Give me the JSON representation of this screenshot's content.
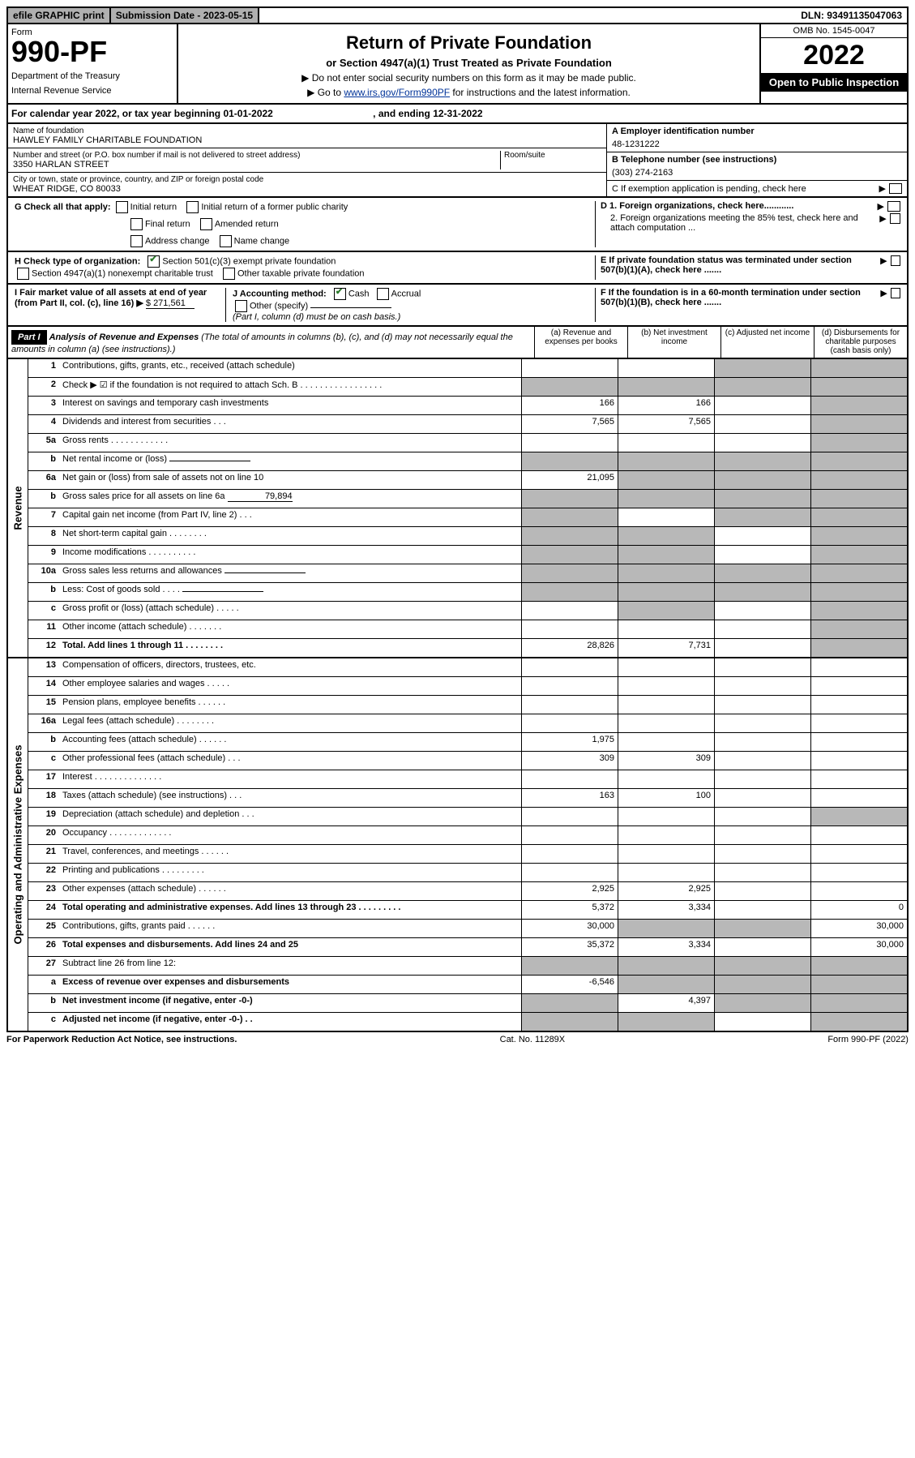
{
  "topbar": {
    "efile": "efile GRAPHIC print",
    "subdate_lbl": "Submission Date - ",
    "subdate_val": "2023-05-15",
    "dln_lbl": "DLN: ",
    "dln_val": "93491135047063"
  },
  "hdr": {
    "form_word": "Form",
    "form_no": "990-PF",
    "dept": "Department of the Treasury",
    "irs": "Internal Revenue Service",
    "title": "Return of Private Foundation",
    "subtitle": "or Section 4947(a)(1) Trust Treated as Private Foundation",
    "instr1": "▶ Do not enter social security numbers on this form as it may be made public.",
    "instr2_pre": "▶ Go to ",
    "instr2_link": "www.irs.gov/Form990PF",
    "instr2_post": " for instructions and the latest information.",
    "omb": "OMB No. 1545-0047",
    "year": "2022",
    "open": "Open to Public Inspection"
  },
  "calyr": {
    "pre": "For calendar year 2022, or tax year beginning ",
    "begin": "01-01-2022",
    "mid": " , and ending ",
    "end": "12-31-2022"
  },
  "info": {
    "name_lbl": "Name of foundation",
    "name": "HAWLEY FAMILY CHARITABLE FOUNDATION",
    "addr_lbl": "Number and street (or P.O. box number if mail is not delivered to street address)",
    "addr": "3350 HARLAN STREET",
    "room_lbl": "Room/suite",
    "city_lbl": "City or town, state or province, country, and ZIP or foreign postal code",
    "city": "WHEAT RIDGE, CO  80033",
    "a_lbl": "A Employer identification number",
    "a_val": "48-1231222",
    "b_lbl": "B Telephone number (see instructions)",
    "b_val": "(303) 274-2163",
    "c_lbl": "C If exemption application is pending, check here",
    "d1_lbl": "D 1. Foreign organizations, check here............",
    "d2_lbl": "2. Foreign organizations meeting the 85% test, check here and attach computation ...",
    "e_lbl": "E If private foundation status was terminated under section 507(b)(1)(A), check here .......",
    "f_lbl": "F If the foundation is in a 60-month termination under section 507(b)(1)(B), check here .......",
    "g_lbl": "G Check all that apply:",
    "g_opts": [
      "Initial return",
      "Initial return of a former public charity",
      "Final return",
      "Amended return",
      "Address change",
      "Name change"
    ],
    "h_lbl": "H Check type of organization:",
    "h_opts": [
      "Section 501(c)(3) exempt private foundation",
      "Section 4947(a)(1) nonexempt charitable trust",
      "Other taxable private foundation"
    ],
    "i_lbl": "I Fair market value of all assets at end of year (from Part II, col. (c), line 16) ▶",
    "i_val": "$  271,561",
    "j_lbl": "J Accounting method:",
    "j_opts": [
      "Cash",
      "Accrual",
      "Other (specify)"
    ],
    "j_note": "(Part I, column (d) must be on cash basis.)"
  },
  "part1": {
    "label": "Part I",
    "title": "Analysis of Revenue and Expenses",
    "note": " (The total of amounts in columns (b), (c), and (d) may not necessarily equal the amounts in column (a) (see instructions).)",
    "cols": [
      "(a) Revenue and expenses per books",
      "(b) Net investment income",
      "(c) Adjusted net income",
      "(d) Disbursements for charitable purposes (cash basis only)"
    ]
  },
  "sections": {
    "revenue": "Revenue",
    "expenses": "Operating and Administrative Expenses"
  },
  "lines": [
    {
      "n": "1",
      "d": "Contributions, gifts, grants, etc., received (attach schedule)",
      "a": "",
      "b": "",
      "c": "grey",
      "dd": "grey"
    },
    {
      "n": "2",
      "d": "Check ▶ ☑ if the foundation is not required to attach Sch. B   . . . . . . . . . . . . . . . . .",
      "a": "grey",
      "b": "grey",
      "c": "grey",
      "dd": "grey"
    },
    {
      "n": "3",
      "d": "Interest on savings and temporary cash investments",
      "a": "166",
      "b": "166",
      "c": "",
      "dd": "grey"
    },
    {
      "n": "4",
      "d": "Dividends and interest from securities   .  .  .",
      "a": "7,565",
      "b": "7,565",
      "c": "",
      "dd": "grey"
    },
    {
      "n": "5a",
      "d": "Gross rents   .  .  .  .  .  .  .  .  .  .  .  .",
      "a": "",
      "b": "",
      "c": "",
      "dd": "grey"
    },
    {
      "n": "b",
      "d": "Net rental income or (loss)  ",
      "a": "grey",
      "b": "grey",
      "c": "grey",
      "dd": "grey",
      "inline": true
    },
    {
      "n": "6a",
      "d": "Net gain or (loss) from sale of assets not on line 10",
      "a": "21,095",
      "b": "grey",
      "c": "grey",
      "dd": "grey"
    },
    {
      "n": "b",
      "d": "Gross sales price for all assets on line 6a",
      "inline_val": "79,894",
      "a": "grey",
      "b": "grey",
      "c": "grey",
      "dd": "grey"
    },
    {
      "n": "7",
      "d": "Capital gain net income (from Part IV, line 2)   .  .  .",
      "a": "grey",
      "b": "",
      "c": "grey",
      "dd": "grey"
    },
    {
      "n": "8",
      "d": "Net short-term capital gain  .  .  .  .  .  .  .  .",
      "a": "grey",
      "b": "grey",
      "c": "",
      "dd": "grey"
    },
    {
      "n": "9",
      "d": "Income modifications  .  .  .  .  .  .  .  .  .  .",
      "a": "grey",
      "b": "grey",
      "c": "",
      "dd": "grey"
    },
    {
      "n": "10a",
      "d": "Gross sales less returns and allowances",
      "a": "grey",
      "b": "grey",
      "c": "grey",
      "dd": "grey",
      "inline": true
    },
    {
      "n": "b",
      "d": "Less: Cost of goods sold   .  .  .  .",
      "a": "grey",
      "b": "grey",
      "c": "grey",
      "dd": "grey",
      "inline": true
    },
    {
      "n": "c",
      "d": "Gross profit or (loss) (attach schedule)   .  .  .  .  .",
      "a": "",
      "b": "grey",
      "c": "",
      "dd": "grey"
    },
    {
      "n": "11",
      "d": "Other income (attach schedule)   .  .  .  .  .  .  .",
      "a": "",
      "b": "",
      "c": "",
      "dd": "grey"
    },
    {
      "n": "12",
      "d": "Total. Add lines 1 through 11   .  .  .  .  .  .  .  .",
      "a": "28,826",
      "b": "7,731",
      "c": "",
      "dd": "grey",
      "bold": true
    }
  ],
  "exp_lines": [
    {
      "n": "13",
      "d": "Compensation of officers, directors, trustees, etc.",
      "a": "",
      "b": "",
      "c": "",
      "dd": ""
    },
    {
      "n": "14",
      "d": "Other employee salaries and wages   .  .  .  .  .",
      "a": "",
      "b": "",
      "c": "",
      "dd": ""
    },
    {
      "n": "15",
      "d": "Pension plans, employee benefits  .  .  .  .  .  .",
      "a": "",
      "b": "",
      "c": "",
      "dd": ""
    },
    {
      "n": "16a",
      "d": "Legal fees (attach schedule)  .  .  .  .  .  .  .  .",
      "a": "",
      "b": "",
      "c": "",
      "dd": ""
    },
    {
      "n": "b",
      "d": "Accounting fees (attach schedule)  .  .  .  .  .  .",
      "a": "1,975",
      "b": "",
      "c": "",
      "dd": ""
    },
    {
      "n": "c",
      "d": "Other professional fees (attach schedule)   .  .  .",
      "a": "309",
      "b": "309",
      "c": "",
      "dd": ""
    },
    {
      "n": "17",
      "d": "Interest  .  .  .  .  .  .  .  .  .  .  .  .  .  .",
      "a": "",
      "b": "",
      "c": "",
      "dd": ""
    },
    {
      "n": "18",
      "d": "Taxes (attach schedule) (see instructions)   .  .  .",
      "a": "163",
      "b": "100",
      "c": "",
      "dd": ""
    },
    {
      "n": "19",
      "d": "Depreciation (attach schedule) and depletion   .  .  .",
      "a": "",
      "b": "",
      "c": "",
      "dd": "grey"
    },
    {
      "n": "20",
      "d": "Occupancy  .  .  .  .  .  .  .  .  .  .  .  .  .",
      "a": "",
      "b": "",
      "c": "",
      "dd": ""
    },
    {
      "n": "21",
      "d": "Travel, conferences, and meetings  .  .  .  .  .  .",
      "a": "",
      "b": "",
      "c": "",
      "dd": ""
    },
    {
      "n": "22",
      "d": "Printing and publications  .  .  .  .  .  .  .  .  .",
      "a": "",
      "b": "",
      "c": "",
      "dd": ""
    },
    {
      "n": "23",
      "d": "Other expenses (attach schedule)  .  .  .  .  .  .",
      "a": "2,925",
      "b": "2,925",
      "c": "",
      "dd": ""
    },
    {
      "n": "24",
      "d": "Total operating and administrative expenses. Add lines 13 through 23  .  .  .  .  .  .  .  .  .",
      "a": "5,372",
      "b": "3,334",
      "c": "",
      "dd": "0",
      "bold": true
    },
    {
      "n": "25",
      "d": "Contributions, gifts, grants paid   .  .  .  .  .  .",
      "a": "30,000",
      "b": "grey",
      "c": "grey",
      "dd": "30,000"
    },
    {
      "n": "26",
      "d": "Total expenses and disbursements. Add lines 24 and 25",
      "a": "35,372",
      "b": "3,334",
      "c": "",
      "dd": "30,000",
      "bold": true
    },
    {
      "n": "27",
      "d": "Subtract line 26 from line 12:",
      "a": "grey",
      "b": "grey",
      "c": "grey",
      "dd": "grey"
    },
    {
      "n": "a",
      "d": "Excess of revenue over expenses and disbursements",
      "a": "-6,546",
      "b": "grey",
      "c": "grey",
      "dd": "grey",
      "bold": true
    },
    {
      "n": "b",
      "d": "Net investment income (if negative, enter -0-)",
      "a": "grey",
      "b": "4,397",
      "c": "grey",
      "dd": "grey",
      "bold": true
    },
    {
      "n": "c",
      "d": "Adjusted net income (if negative, enter -0-)   .  .",
      "a": "grey",
      "b": "grey",
      "c": "",
      "dd": "grey",
      "bold": true
    }
  ],
  "footer": {
    "left": "For Paperwork Reduction Act Notice, see instructions.",
    "mid": "Cat. No. 11289X",
    "right": "Form 990-PF (2022)"
  }
}
